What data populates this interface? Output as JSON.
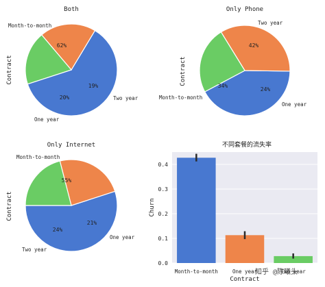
{
  "colors": {
    "blue": "#4878d0",
    "orange": "#ee854a",
    "green": "#6acc64",
    "panel_bg": "#eaeaf2",
    "grid": "#ffffff",
    "err": "#2b2b2b"
  },
  "chart_data": [
    {
      "type": "pie",
      "title": "Both",
      "ylabel": "Contract",
      "slices": [
        {
          "label": "Month-to-month",
          "value": 62,
          "pct_label": "62%",
          "color": "#4878d0"
        },
        {
          "label": "One year",
          "value": 20,
          "pct_label": "20%",
          "color": "#ee854a"
        },
        {
          "label": "Two year",
          "value": 19,
          "pct_label": "19%",
          "color": "#6acc64"
        }
      ]
    },
    {
      "type": "pie",
      "title": "Only Phone",
      "ylabel": "Contract",
      "slices": [
        {
          "label": "Two year",
          "value": 42,
          "pct_label": "42%",
          "color": "#4878d0"
        },
        {
          "label": "Month-to-month",
          "value": 34,
          "pct_label": "34%",
          "color": "#ee854a"
        },
        {
          "label": "One year",
          "value": 24,
          "pct_label": "24%",
          "color": "#6acc64"
        }
      ]
    },
    {
      "type": "pie",
      "title": "Only Internet",
      "ylabel": "Contract",
      "slices": [
        {
          "label": "Month-to-month",
          "value": 55,
          "pct_label": "55%",
          "color": "#4878d0"
        },
        {
          "label": "Two year",
          "value": 24,
          "pct_label": "24%",
          "color": "#ee854a"
        },
        {
          "label": "One year",
          "value": 21,
          "pct_label": "21%",
          "color": "#6acc64"
        }
      ]
    },
    {
      "type": "bar",
      "title": "不同套餐的流失率",
      "xlabel": "Contract",
      "ylabel": "Churn",
      "categories": [
        "Month-to-month",
        "One year",
        "Two year"
      ],
      "values": [
        0.427,
        0.113,
        0.028
      ],
      "error": [
        [
          0.412,
          0.443
        ],
        [
          0.097,
          0.129
        ],
        [
          0.018,
          0.039
        ]
      ],
      "colors": [
        "#4878d0",
        "#ee854a",
        "#6acc64"
      ],
      "ylim": [
        0,
        0.45
      ],
      "yticks": [
        0.0,
        0.1,
        0.2,
        0.3,
        0.4
      ],
      "ytick_labels": [
        "0.0",
        "0.1",
        "0.2",
        "0.3",
        "0.4"
      ],
      "grid": true,
      "watermark": "知乎 @陈曦头"
    }
  ]
}
